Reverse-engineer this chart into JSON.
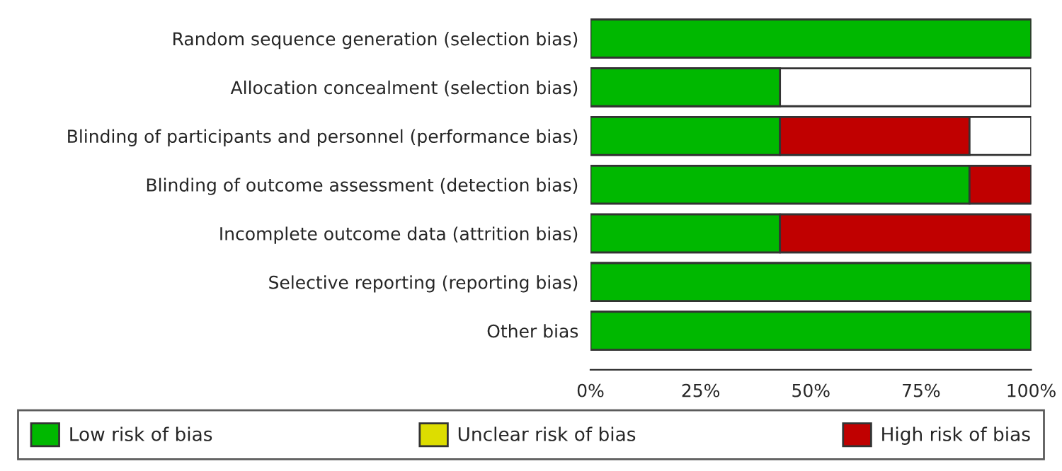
{
  "chart_data": {
    "type": "bar",
    "orientation": "horizontal",
    "stacked": true,
    "categories": [
      "Random sequence generation (selection bias)",
      "Allocation concealment (selection bias)",
      "Blinding of participants and personnel (performance bias)",
      "Blinding of outcome assessment (detection bias)",
      "Incomplete outcome data (attrition bias)",
      "Selective reporting (reporting bias)",
      "Other bias"
    ],
    "series": [
      {
        "name": "Low risk of bias",
        "color": "#00b800",
        "values": [
          100,
          43,
          43,
          86,
          43,
          100,
          100
        ]
      },
      {
        "name": "Unclear risk of bias",
        "color": "#dddd00",
        "values": [
          null,
          null,
          null,
          null,
          null,
          null,
          null
        ]
      },
      {
        "name": "High risk of bias",
        "color": "#c00000",
        "values": [
          null,
          null,
          43,
          14,
          57,
          null,
          null
        ]
      }
    ],
    "xlim": [
      0,
      100
    ],
    "xticks": [
      {
        "value": 0,
        "label": "0%"
      },
      {
        "value": 25,
        "label": "25%"
      },
      {
        "value": 50,
        "label": "50%"
      },
      {
        "value": 75,
        "label": "75%"
      },
      {
        "value": 100,
        "label": "100%"
      }
    ],
    "legend": "bottom",
    "grid": false
  }
}
